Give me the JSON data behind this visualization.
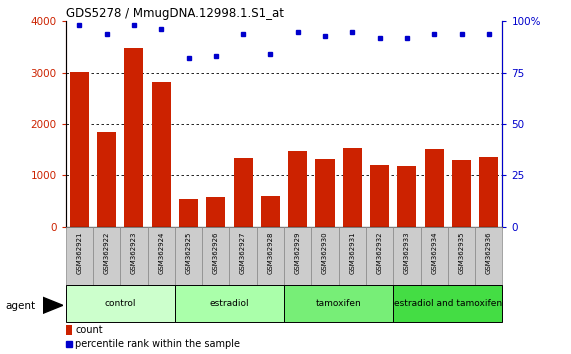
{
  "title": "GDS5278 / MmugDNA.12998.1.S1_at",
  "samples": [
    "GSM362921",
    "GSM362922",
    "GSM362923",
    "GSM362924",
    "GSM362925",
    "GSM362926",
    "GSM362927",
    "GSM362928",
    "GSM362929",
    "GSM362930",
    "GSM362931",
    "GSM362932",
    "GSM362933",
    "GSM362934",
    "GSM362935",
    "GSM362936"
  ],
  "counts": [
    3020,
    1840,
    3480,
    2820,
    540,
    570,
    1330,
    590,
    1470,
    1310,
    1530,
    1190,
    1180,
    1510,
    1290,
    1360
  ],
  "percentiles": [
    98,
    94,
    98,
    96,
    82,
    83,
    94,
    84,
    95,
    93,
    95,
    92,
    92,
    94,
    94,
    94
  ],
  "bar_color": "#cc2200",
  "dot_color": "#0000cc",
  "ylim_left": [
    0,
    4000
  ],
  "ylim_right": [
    0,
    100
  ],
  "yticks_left": [
    0,
    1000,
    2000,
    3000,
    4000
  ],
  "yticks_right": [
    0,
    25,
    50,
    75,
    100
  ],
  "groups": [
    {
      "label": "control",
      "start": 0,
      "end": 4,
      "color": "#ccffcc"
    },
    {
      "label": "estradiol",
      "start": 4,
      "end": 8,
      "color": "#aaffaa"
    },
    {
      "label": "tamoxifen",
      "start": 8,
      "end": 12,
      "color": "#77ee77"
    },
    {
      "label": "estradiol and tamoxifen",
      "start": 12,
      "end": 16,
      "color": "#44dd44"
    }
  ],
  "agent_label": "agent",
  "legend_count_label": "count",
  "legend_percentile_label": "percentile rank within the sample",
  "tick_area_color": "#cccccc"
}
